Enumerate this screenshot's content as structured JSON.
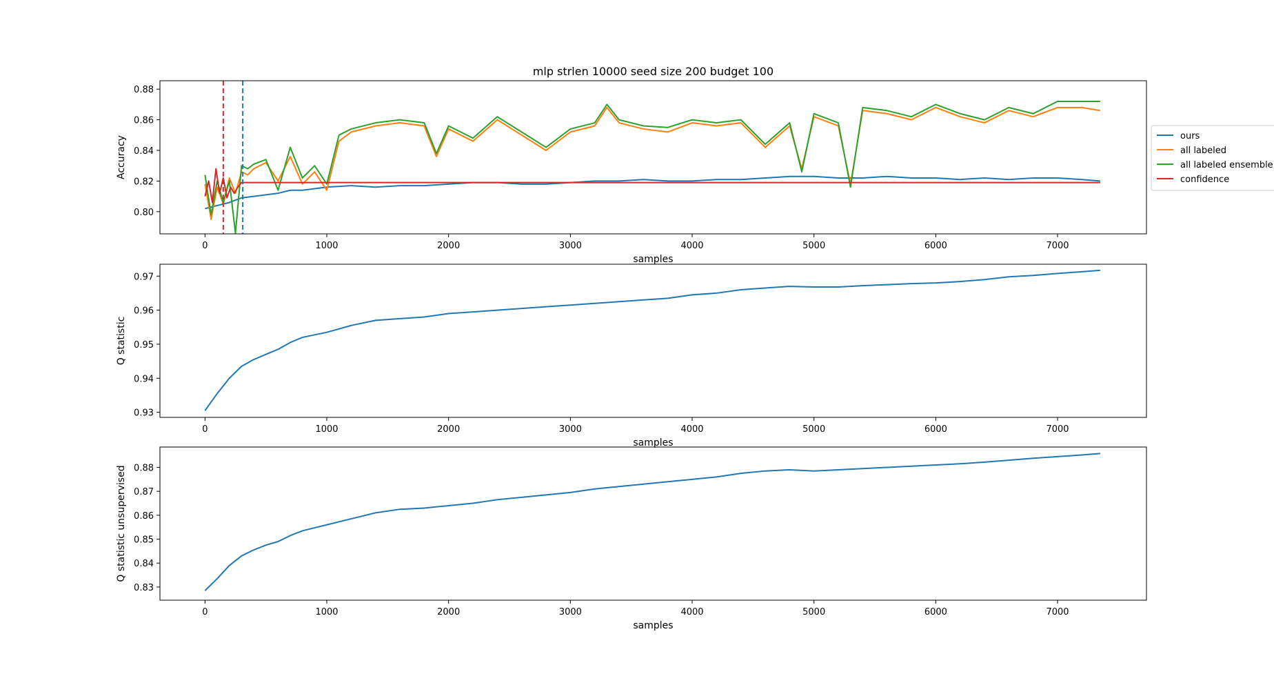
{
  "chart_data": [
    {
      "type": "line",
      "title": "mlp strlen 10000 seed size 200 budget 100",
      "xlabel": "samples",
      "ylabel": "Accuracy",
      "xlim": [
        -370,
        7730
      ],
      "ylim": [
        0.7855,
        0.8855
      ],
      "xticks": [
        0,
        1000,
        2000,
        3000,
        4000,
        5000,
        6000,
        7000
      ],
      "yticks": [
        0.8,
        0.82,
        0.84,
        0.86,
        0.88
      ],
      "grid": false,
      "legend_position": "outside-right",
      "series": [
        {
          "name": "ours",
          "color": "#1f77b4",
          "x": [
            0,
            100,
            200,
            300,
            400,
            500,
            600,
            700,
            800,
            900,
            1000,
            1200,
            1400,
            1600,
            1800,
            2000,
            2200,
            2400,
            2600,
            2800,
            3000,
            3200,
            3400,
            3600,
            3800,
            4000,
            4200,
            4400,
            4600,
            4800,
            5000,
            5200,
            5400,
            5600,
            5800,
            6000,
            6200,
            6400,
            6600,
            6800,
            7000,
            7200,
            7350
          ],
          "y": [
            0.802,
            0.804,
            0.806,
            0.809,
            0.81,
            0.811,
            0.812,
            0.814,
            0.814,
            0.815,
            0.816,
            0.817,
            0.816,
            0.817,
            0.817,
            0.818,
            0.819,
            0.819,
            0.818,
            0.818,
            0.819,
            0.82,
            0.82,
            0.821,
            0.82,
            0.82,
            0.821,
            0.821,
            0.822,
            0.823,
            0.823,
            0.822,
            0.822,
            0.823,
            0.822,
            0.822,
            0.821,
            0.822,
            0.821,
            0.822,
            0.822,
            0.821,
            0.82
          ]
        },
        {
          "name": "all labeled",
          "color": "#ff7f0e",
          "x": [
            0,
            50,
            100,
            150,
            200,
            250,
            300,
            350,
            400,
            500,
            600,
            700,
            800,
            900,
            1000,
            1100,
            1200,
            1400,
            1600,
            1800,
            1900,
            2000,
            2200,
            2400,
            2600,
            2800,
            3000,
            3200,
            3300,
            3400,
            3600,
            3800,
            4000,
            4200,
            4400,
            4600,
            4800,
            4900,
            5000,
            5200,
            5300,
            5400,
            5600,
            5800,
            6000,
            6200,
            6400,
            6600,
            6800,
            7000,
            7200,
            7350
          ],
          "y": [
            0.818,
            0.795,
            0.816,
            0.805,
            0.822,
            0.812,
            0.826,
            0.824,
            0.828,
            0.832,
            0.82,
            0.836,
            0.818,
            0.826,
            0.814,
            0.846,
            0.852,
            0.856,
            0.858,
            0.856,
            0.836,
            0.854,
            0.846,
            0.86,
            0.85,
            0.84,
            0.852,
            0.856,
            0.868,
            0.858,
            0.854,
            0.852,
            0.858,
            0.856,
            0.858,
            0.842,
            0.856,
            0.828,
            0.862,
            0.856,
            0.818,
            0.866,
            0.864,
            0.86,
            0.868,
            0.862,
            0.858,
            0.866,
            0.862,
            0.868,
            0.868,
            0.866
          ]
        },
        {
          "name": "all labeled ensemble",
          "color": "#2ca02c",
          "x": [
            0,
            50,
            100,
            150,
            200,
            250,
            300,
            350,
            400,
            500,
            600,
            700,
            800,
            900,
            1000,
            1100,
            1200,
            1400,
            1600,
            1800,
            1900,
            2000,
            2200,
            2400,
            2600,
            2800,
            3000,
            3200,
            3300,
            3400,
            3600,
            3800,
            4000,
            4200,
            4400,
            4600,
            4800,
            4900,
            5000,
            5200,
            5300,
            5400,
            5600,
            5800,
            6000,
            6200,
            6400,
            6600,
            6800,
            7000,
            7200,
            7350
          ],
          "y": [
            0.824,
            0.798,
            0.82,
            0.806,
            0.82,
            0.786,
            0.83,
            0.828,
            0.831,
            0.834,
            0.814,
            0.842,
            0.822,
            0.83,
            0.818,
            0.85,
            0.854,
            0.858,
            0.86,
            0.858,
            0.838,
            0.856,
            0.848,
            0.862,
            0.852,
            0.842,
            0.854,
            0.858,
            0.87,
            0.86,
            0.856,
            0.855,
            0.86,
            0.858,
            0.86,
            0.844,
            0.858,
            0.826,
            0.864,
            0.858,
            0.816,
            0.868,
            0.866,
            0.862,
            0.87,
            0.864,
            0.86,
            0.868,
            0.864,
            0.872,
            0.872,
            0.872
          ]
        },
        {
          "name": "confidence",
          "color": "#d62728",
          "x": [
            0,
            30,
            60,
            90,
            120,
            150,
            180,
            210,
            240,
            270,
            300,
            400,
            1000,
            2000,
            3000,
            4000,
            5000,
            6000,
            7000,
            7350
          ],
          "y": [
            0.81,
            0.82,
            0.806,
            0.828,
            0.812,
            0.822,
            0.809,
            0.816,
            0.812,
            0.816,
            0.819,
            0.819,
            0.819,
            0.819,
            0.819,
            0.819,
            0.819,
            0.819,
            0.819,
            0.819
          ]
        }
      ],
      "vlines": [
        {
          "x": 150,
          "color": "#d62728",
          "style": "dashed"
        },
        {
          "x": 310,
          "color": "#1f77b4",
          "style": "dashed"
        }
      ]
    },
    {
      "type": "line",
      "title": "",
      "xlabel": "samples",
      "ylabel": "Q statistic",
      "xlim": [
        -370,
        7730
      ],
      "ylim": [
        0.9285,
        0.9735
      ],
      "xticks": [
        0,
        1000,
        2000,
        3000,
        4000,
        5000,
        6000,
        7000
      ],
      "yticks": [
        0.93,
        0.94,
        0.95,
        0.96,
        0.97
      ],
      "grid": false,
      "series": [
        {
          "color": "#1f77b4",
          "x": [
            0,
            50,
            100,
            200,
            300,
            400,
            500,
            600,
            700,
            800,
            1000,
            1200,
            1400,
            1600,
            1800,
            2000,
            2200,
            2400,
            2600,
            2800,
            3000,
            3200,
            3400,
            3600,
            3800,
            4000,
            4200,
            4400,
            4600,
            4800,
            5000,
            5200,
            5400,
            5600,
            5800,
            6000,
            6200,
            6400,
            6600,
            6800,
            7000,
            7200,
            7350
          ],
          "y": [
            0.9305,
            0.933,
            0.9355,
            0.94,
            0.9435,
            0.9455,
            0.947,
            0.9485,
            0.9505,
            0.952,
            0.9535,
            0.9555,
            0.957,
            0.9575,
            0.958,
            0.959,
            0.9595,
            0.96,
            0.9605,
            0.961,
            0.9615,
            0.962,
            0.9625,
            0.963,
            0.9635,
            0.9645,
            0.965,
            0.966,
            0.9665,
            0.967,
            0.9668,
            0.9668,
            0.9672,
            0.9675,
            0.9678,
            0.968,
            0.9684,
            0.969,
            0.9698,
            0.9702,
            0.9708,
            0.9713,
            0.9717
          ]
        }
      ]
    },
    {
      "type": "line",
      "title": "",
      "xlabel": "samples",
      "ylabel": "Q statistic unsupervised",
      "xlim": [
        -370,
        7730
      ],
      "ylim": [
        0.8245,
        0.8885
      ],
      "xticks": [
        0,
        1000,
        2000,
        3000,
        4000,
        5000,
        6000,
        7000
      ],
      "yticks": [
        0.83,
        0.84,
        0.85,
        0.86,
        0.87,
        0.88
      ],
      "grid": false,
      "series": [
        {
          "color": "#1f77b4",
          "x": [
            0,
            50,
            100,
            200,
            300,
            400,
            500,
            600,
            700,
            800,
            1000,
            1200,
            1400,
            1600,
            1800,
            2000,
            2200,
            2400,
            2600,
            2800,
            3000,
            3200,
            3400,
            3600,
            3800,
            4000,
            4200,
            4400,
            4600,
            4800,
            5000,
            5200,
            5400,
            5600,
            5800,
            6000,
            6200,
            6400,
            6600,
            6800,
            7000,
            7200,
            7350
          ],
          "y": [
            0.8285,
            0.831,
            0.8335,
            0.839,
            0.843,
            0.8455,
            0.8475,
            0.849,
            0.8515,
            0.8535,
            0.856,
            0.8585,
            0.861,
            0.8625,
            0.863,
            0.864,
            0.865,
            0.8665,
            0.8675,
            0.8685,
            0.8695,
            0.871,
            0.872,
            0.873,
            0.874,
            0.875,
            0.876,
            0.8775,
            0.8785,
            0.879,
            0.8785,
            0.879,
            0.8795,
            0.88,
            0.8805,
            0.881,
            0.8815,
            0.8822,
            0.883,
            0.8838,
            0.8845,
            0.8852,
            0.8858
          ]
        }
      ]
    }
  ]
}
